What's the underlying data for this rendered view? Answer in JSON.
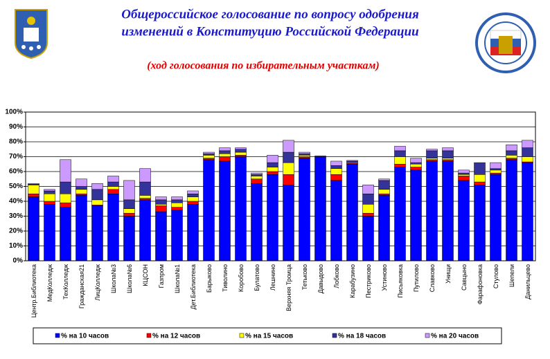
{
  "chart_data": {
    "type": "stacked_bar",
    "title": [
      "Общероссийское голосование по вопросу одобрения",
      "изменений в Конституцию Российской Федерации"
    ],
    "subtitle": "(ход голосования по избирательным участкам)",
    "categories": [
      "Центр.Библиотека",
      "МедКолледж",
      "ТехКолледж",
      "Гражданская21",
      "ЛицКолледж",
      "Школа№3",
      "Школа№6",
      "КЦСОН",
      "Газпром",
      "Школа№1",
      "Дет.Библиотека",
      "Барыково",
      "Тиволино",
      "Коробово",
      "Булатово",
      "Лешнино",
      "Верхняя Троица",
      "Тетьково",
      "Давыдово",
      "Лобково",
      "Карабузино",
      "Пестриково",
      "Устиново",
      "Письяковка",
      "Путилово",
      "Славково",
      "Унищи",
      "Савцыно",
      "Фарафоновка",
      "Стулово",
      "Шепели",
      "Данильцево"
    ],
    "series": [
      {
        "name": "% на 10 часов",
        "color": "#0000ff",
        "values": [
          43,
          38,
          36,
          44,
          37,
          45,
          30,
          41,
          33,
          34,
          38,
          68,
          67,
          70,
          52,
          58,
          51,
          69,
          70,
          54,
          65,
          30,
          44,
          63,
          61,
          67,
          67,
          54,
          51,
          58,
          68,
          66
        ]
      },
      {
        "name": "% на 12 часов",
        "color": "#ff0000",
        "values": [
          2,
          2,
          3,
          1,
          0.5,
          3,
          2,
          1,
          4,
          2,
          2,
          1,
          3,
          1,
          3,
          2,
          7,
          1,
          0,
          4,
          0.5,
          2,
          1,
          2,
          2,
          1,
          1,
          3,
          2,
          1,
          1,
          0.5
        ]
      },
      {
        "name": "% на 15 часов",
        "color": "#ffff00",
        "values": [
          6,
          5,
          6,
          3,
          3.5,
          2,
          3,
          2,
          1,
          3,
          3,
          2,
          2,
          2,
          2,
          3,
          8,
          1,
          0,
          4,
          0.5,
          6,
          3,
          5,
          2,
          1,
          1,
          1,
          5,
          2,
          2,
          3.5
        ]
      },
      {
        "name": "% на 18 часов",
        "color": "#333399",
        "values": [
          0.5,
          2,
          8,
          2,
          7,
          3,
          6,
          9,
          3,
          2,
          2,
          1,
          2,
          2,
          1,
          3,
          7,
          1,
          0.5,
          2,
          1,
          7,
          6,
          4,
          1,
          5,
          5,
          1,
          8,
          1,
          3,
          6
        ]
      },
      {
        "name": "% на 20 часов",
        "color": "#cc99ff",
        "values": [
          0.5,
          1,
          15,
          5,
          4,
          4,
          13,
          9,
          2,
          2,
          2,
          1,
          2,
          1,
          1,
          5,
          8,
          1,
          0,
          3,
          0.5,
          6,
          1,
          3,
          3,
          1,
          2,
          2,
          0,
          4,
          4,
          5
        ]
      }
    ],
    "ylim": [
      0,
      100
    ],
    "yticks": [
      {
        "value": 0,
        "label": "0%"
      },
      {
        "value": 10,
        "label": "10%"
      },
      {
        "value": 20,
        "label": "20%"
      },
      {
        "value": 30,
        "label": "30%"
      },
      {
        "value": 40,
        "label": "40%"
      },
      {
        "value": 50,
        "label": "50%"
      },
      {
        "value": 60,
        "label": "60%"
      },
      {
        "value": 70,
        "label": "70%"
      },
      {
        "value": 80,
        "label": "80%"
      },
      {
        "value": 90,
        "label": "90%"
      },
      {
        "value": 100,
        "label": "100%"
      }
    ],
    "grid": true
  }
}
